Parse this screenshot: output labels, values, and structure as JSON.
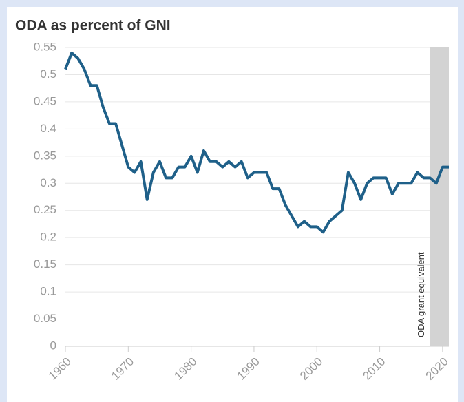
{
  "chart_data": {
    "type": "line",
    "title": "ODA as percent of GNI",
    "x": [
      1960,
      1961,
      1962,
      1963,
      1964,
      1965,
      1966,
      1967,
      1968,
      1969,
      1970,
      1971,
      1972,
      1973,
      1974,
      1975,
      1976,
      1977,
      1978,
      1979,
      1980,
      1981,
      1982,
      1983,
      1984,
      1985,
      1986,
      1987,
      1988,
      1989,
      1990,
      1991,
      1992,
      1993,
      1994,
      1995,
      1996,
      1997,
      1998,
      1999,
      2000,
      2001,
      2002,
      2003,
      2004,
      2005,
      2006,
      2007,
      2008,
      2009,
      2010,
      2011,
      2012,
      2013,
      2014,
      2015,
      2016,
      2017,
      2018,
      2019,
      2020,
      2021
    ],
    "values": [
      0.51,
      0.54,
      0.53,
      0.51,
      0.48,
      0.48,
      0.44,
      0.41,
      0.41,
      0.37,
      0.33,
      0.32,
      0.34,
      0.27,
      0.32,
      0.34,
      0.31,
      0.31,
      0.33,
      0.33,
      0.35,
      0.32,
      0.36,
      0.34,
      0.34,
      0.33,
      0.34,
      0.33,
      0.34,
      0.31,
      0.32,
      0.32,
      0.32,
      0.29,
      0.29,
      0.26,
      0.24,
      0.22,
      0.23,
      0.22,
      0.22,
      0.21,
      0.23,
      0.24,
      0.25,
      0.32,
      0.3,
      0.27,
      0.3,
      0.31,
      0.31,
      0.31,
      0.28,
      0.3,
      0.3,
      0.3,
      0.32,
      0.31,
      0.31,
      0.3,
      0.33,
      0.33
    ],
    "color": "#1f6089",
    "xlim": [
      1960,
      2021
    ],
    "xticks": [
      1960,
      1970,
      1980,
      1990,
      2000,
      2010,
      2020
    ],
    "ylim": [
      0,
      0.55
    ],
    "yticks": [
      0,
      0.05,
      0.1,
      0.15,
      0.2,
      0.25,
      0.3,
      0.35,
      0.4,
      0.45,
      0.5,
      0.55
    ],
    "grid": true,
    "highlight": {
      "range": [
        2018,
        2021
      ],
      "color": "#d3d3d3",
      "label": "ODA grant equivalent"
    }
  }
}
